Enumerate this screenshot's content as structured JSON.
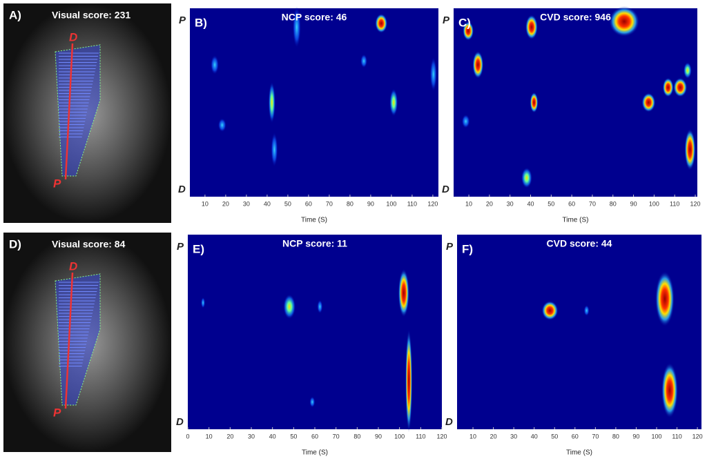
{
  "panels": [
    {
      "label": "A)",
      "title": "Visual score: 231",
      "top_marker": "D",
      "bottom_marker": "P"
    },
    {
      "label": "B)",
      "title": "NCP score: 46",
      "top_marker": "P",
      "bottom_marker": "D",
      "xlim": [
        2.7,
        122.7
      ],
      "xticks": [
        10,
        20,
        30,
        40,
        50,
        60,
        70,
        80,
        90,
        100,
        110,
        120
      ],
      "xlabel": "Time (S)"
    },
    {
      "label": "C)",
      "title": "CVD score: 946",
      "top_marker": "P",
      "bottom_marker": "D",
      "xlim": [
        2.6,
        121
      ],
      "xticks": [
        10,
        20,
        30,
        40,
        50,
        60,
        70,
        80,
        90,
        100,
        110,
        120
      ],
      "xlabel": "Time (S)"
    },
    {
      "label": "D)",
      "title": "Visual score: 84",
      "top_marker": "D",
      "bottom_marker": "P"
    },
    {
      "label": "E)",
      "title": "NCP score: 11",
      "top_marker": "P",
      "bottom_marker": "D",
      "xlim": [
        0,
        120
      ],
      "xticks": [
        0,
        10,
        20,
        30,
        40,
        50,
        60,
        70,
        80,
        90,
        100,
        110,
        120
      ],
      "xlabel": "Time (S)"
    },
    {
      "label": "F)",
      "title": "CVD score: 44",
      "top_marker": "P",
      "bottom_marker": "D",
      "xlim": [
        2.2,
        122
      ],
      "xticks": [
        10,
        20,
        30,
        40,
        50,
        60,
        70,
        80,
        90,
        100,
        110,
        120
      ],
      "xlabel": "Time (S)"
    }
  ]
}
